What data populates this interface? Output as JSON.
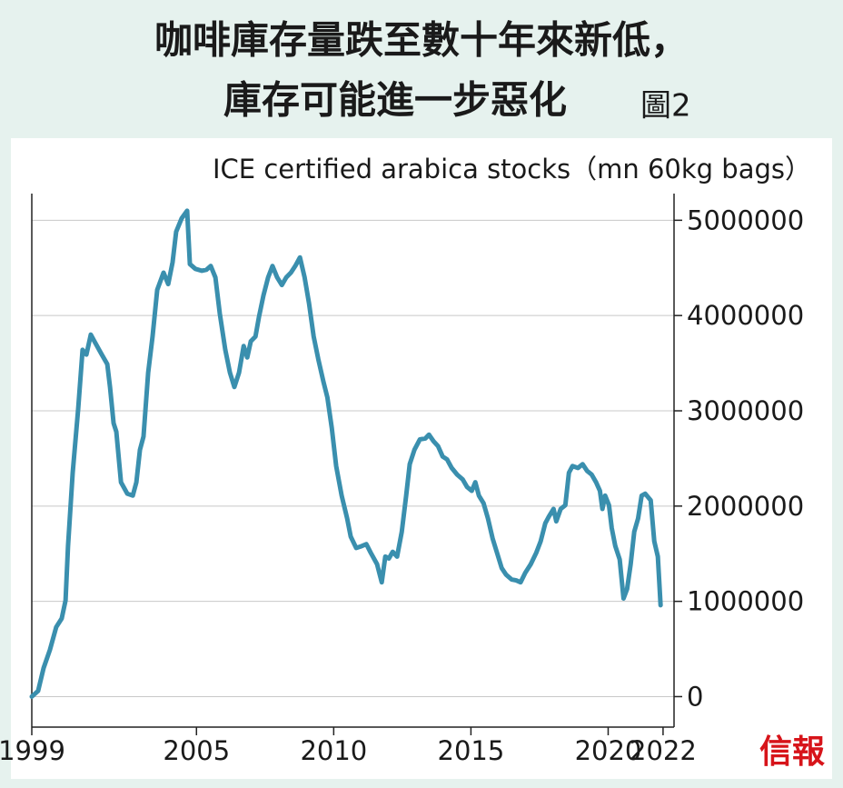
{
  "chart_data": {
    "type": "line",
    "title": "咖啡庫存量跌至數十年來新低，",
    "title_line2": "庫存可能進一步惡化",
    "figure_label": "圖2",
    "subtitle": "ICE certified arabica stocks（mn 60kg bags）",
    "logo": "信報",
    "x": [
      1999.0,
      1999.23,
      1999.43,
      1999.66,
      1999.89,
      2000.09,
      2000.23,
      2000.32,
      2000.49,
      2000.69,
      2000.85,
      2000.99,
      2001.15,
      2001.28,
      2001.55,
      2001.75,
      2001.85,
      2001.98,
      2002.08,
      2002.25,
      2002.48,
      2002.68,
      2002.81,
      2002.94,
      2003.07,
      2003.24,
      2003.4,
      2003.57,
      2003.8,
      2003.97,
      2004.13,
      2004.26,
      2004.46,
      2004.66,
      2004.76,
      2004.96,
      2005.19,
      2005.36,
      2005.52,
      2005.69,
      2005.85,
      2006.05,
      2006.22,
      2006.38,
      2006.55,
      2006.72,
      2006.85,
      2006.98,
      2007.15,
      2007.28,
      2007.44,
      2007.61,
      2007.77,
      2007.94,
      2008.11,
      2008.27,
      2008.44,
      2008.6,
      2008.77,
      2008.94,
      2009.1,
      2009.27,
      2009.44,
      2009.63,
      2009.77,
      2009.93,
      2010.09,
      2010.29,
      2010.49,
      2010.62,
      2010.82,
      2011.02,
      2011.19,
      2011.35,
      2011.58,
      2011.75,
      2011.88,
      2012.01,
      2012.15,
      2012.31,
      2012.48,
      2012.64,
      2012.77,
      2012.94,
      2013.14,
      2013.34,
      2013.47,
      2013.64,
      2013.8,
      2013.97,
      2014.13,
      2014.3,
      2014.5,
      2014.7,
      2014.86,
      2015.03,
      2015.16,
      2015.29,
      2015.46,
      2015.62,
      2015.79,
      2015.95,
      2016.12,
      2016.28,
      2016.48,
      2016.65,
      2016.81,
      2016.98,
      2017.18,
      2017.38,
      2017.54,
      2017.71,
      2017.84,
      2018.01,
      2018.11,
      2018.27,
      2018.44,
      2018.57,
      2018.7,
      2018.9,
      2019.07,
      2019.23,
      2019.4,
      2019.56,
      2019.7,
      2019.79,
      2019.89,
      2020.03,
      2020.13,
      2020.26,
      2020.42,
      2020.56,
      2020.69,
      2020.82,
      2020.95,
      2021.09,
      2021.22,
      2021.35,
      2021.55,
      2021.68,
      2021.81,
      2021.91
    ],
    "series": [
      {
        "color": "#3a8fae",
        "values": [
          0,
          60000,
          300000,
          490000,
          730000,
          820000,
          1010000,
          1580000,
          2350000,
          3020000,
          3640000,
          3590000,
          3800000,
          3730000,
          3590000,
          3490000,
          3250000,
          2870000,
          2780000,
          2250000,
          2130000,
          2110000,
          2250000,
          2590000,
          2730000,
          3400000,
          3780000,
          4270000,
          4450000,
          4330000,
          4560000,
          4880000,
          5020000,
          5100000,
          4540000,
          4490000,
          4470000,
          4480000,
          4520000,
          4400000,
          4020000,
          3640000,
          3400000,
          3250000,
          3400000,
          3680000,
          3560000,
          3730000,
          3780000,
          3990000,
          4210000,
          4400000,
          4520000,
          4400000,
          4320000,
          4400000,
          4450000,
          4520000,
          4610000,
          4400000,
          4130000,
          3780000,
          3540000,
          3300000,
          3140000,
          2820000,
          2420000,
          2110000,
          1870000,
          1680000,
          1560000,
          1580000,
          1600000,
          1510000,
          1390000,
          1200000,
          1470000,
          1450000,
          1520000,
          1470000,
          1730000,
          2110000,
          2440000,
          2590000,
          2700000,
          2710000,
          2750000,
          2680000,
          2630000,
          2520000,
          2490000,
          2400000,
          2330000,
          2280000,
          2200000,
          2160000,
          2250000,
          2110000,
          2030000,
          1870000,
          1660000,
          1510000,
          1350000,
          1280000,
          1230000,
          1220000,
          1200000,
          1300000,
          1390000,
          1510000,
          1630000,
          1820000,
          1890000,
          1970000,
          1840000,
          1970000,
          2010000,
          2350000,
          2420000,
          2400000,
          2440000,
          2370000,
          2330000,
          2250000,
          2160000,
          1970000,
          2110000,
          2010000,
          1770000,
          1580000,
          1440000,
          1030000,
          1130000,
          1390000,
          1730000,
          1870000,
          2110000,
          2130000,
          2060000,
          1630000,
          1470000,
          960000
        ]
      }
    ],
    "xlim": [
      1999,
      2022.4
    ],
    "xticks": [
      1999,
      2005,
      2010,
      2015,
      2020,
      2022
    ],
    "ylim": [
      -320000,
      5280000
    ],
    "yticks": [
      0,
      1000000,
      2000000,
      3000000,
      4000000,
      5000000
    ],
    "grid": true
  }
}
